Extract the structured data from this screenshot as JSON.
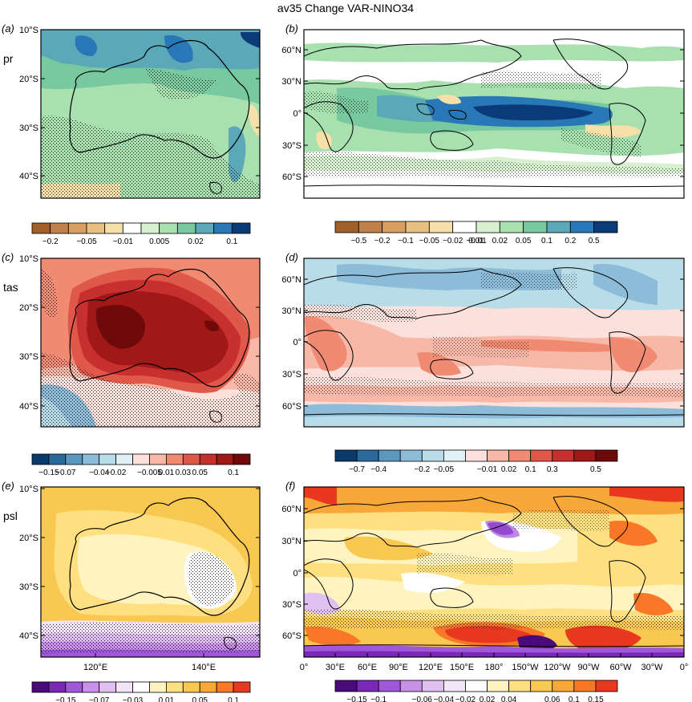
{
  "title": "av35 Change VAR-NINO34",
  "colors": {
    "pr": [
      "#a0602a",
      "#c08048",
      "#d8a060",
      "#e8c080",
      "#f4e0a8",
      "#ffffff",
      "#d8f0d0",
      "#a8e0b0",
      "#78c8a0",
      "#5aa8b8",
      "#2878b8",
      "#0a3a78"
    ],
    "tas": [
      "#0a3a6a",
      "#2a6a9a",
      "#5a98c0",
      "#8cbcd8",
      "#b8dce8",
      "#e0f0f4",
      "#fbe0dc",
      "#f8b8a8",
      "#f08a72",
      "#e0584a",
      "#c83030",
      "#a01818",
      "#6e0a0a"
    ],
    "psl": [
      "#4a0a7a",
      "#7a28b8",
      "#a058d8",
      "#c890e8",
      "#e0c0f0",
      "#f4e4f8",
      "#ffffff",
      "#fff4c0",
      "#ffe080",
      "#f8c850",
      "#f8a838",
      "#f87828",
      "#e83820"
    ]
  },
  "chart_data": [
    {
      "type": "heatmap",
      "panel": "(a)",
      "variable": "pr",
      "region": "Australia",
      "yticks": [
        "10°S",
        "20°S",
        "30°S",
        "40°S"
      ],
      "xticks": []
    },
    {
      "type": "heatmap",
      "panel": "(b)",
      "variable": "pr",
      "region": "Global",
      "yticks": [
        "60°N",
        "30°N",
        "0°",
        "30°S",
        "60°S"
      ],
      "xticks": []
    },
    {
      "type": "heatmap",
      "panel": "(c)",
      "variable": "tas",
      "region": "Australia",
      "yticks": [
        "10°S",
        "20°S",
        "30°S",
        "40°S"
      ],
      "xticks": []
    },
    {
      "type": "heatmap",
      "panel": "(d)",
      "variable": "tas",
      "region": "Global",
      "yticks": [
        "60°N",
        "30°N",
        "0°",
        "30°S",
        "60°S"
      ],
      "xticks": []
    },
    {
      "type": "heatmap",
      "panel": "(e)",
      "variable": "psl",
      "region": "Australia",
      "yticks": [
        "10°S",
        "20°S",
        "30°S",
        "40°S"
      ],
      "xticks": [
        "120°E",
        "140°E"
      ]
    },
    {
      "type": "heatmap",
      "panel": "(f)",
      "variable": "psl",
      "region": "Global",
      "yticks": [
        "60°N",
        "30°N",
        "0°",
        "30°S",
        "60°S"
      ],
      "xticks": [
        "0°",
        "30°E",
        "60°E",
        "90°E",
        "120°E",
        "150°E",
        "180°",
        "150°W",
        "120°W",
        "90°W",
        "60°W",
        "30°W",
        "0°"
      ]
    }
  ],
  "colorbars": {
    "pr_aus": {
      "labels": [
        "−0.2",
        "−0.05",
        "−0.01",
        "0.005",
        "0.02",
        "0.1"
      ]
    },
    "pr_glob": {
      "labels": [
        "−0.5",
        "−0.2",
        "−0.1",
        "−0.05",
        "−0.02",
        "−0.01",
        "0.01",
        "0.02",
        "0.05",
        "0.1",
        "0.2",
        "0.5"
      ]
    },
    "tas_aus": {
      "labels": [
        "−0.15",
        "−0.07",
        "−0.04",
        "−0.02",
        "−0.005",
        "0.01",
        "0.03",
        "0.05",
        "0.1"
      ]
    },
    "tas_glob": {
      "labels": [
        "−0.7",
        "−0.4",
        "−0.2",
        "−0.05",
        "−0.01",
        "0.02",
        "0.1",
        "0.3",
        "0.5"
      ]
    },
    "psl_aus": {
      "labels": [
        "−0.15",
        "−0.07",
        "−0.03",
        "0.01",
        "0.05",
        "0.1"
      ]
    },
    "psl_glob": {
      "labels": [
        "−0.15",
        "−0.1",
        "−0.06",
        "−0.04",
        "−0.02",
        "0.02",
        "0.04",
        "0.06",
        "0.1",
        "0.15"
      ]
    }
  }
}
